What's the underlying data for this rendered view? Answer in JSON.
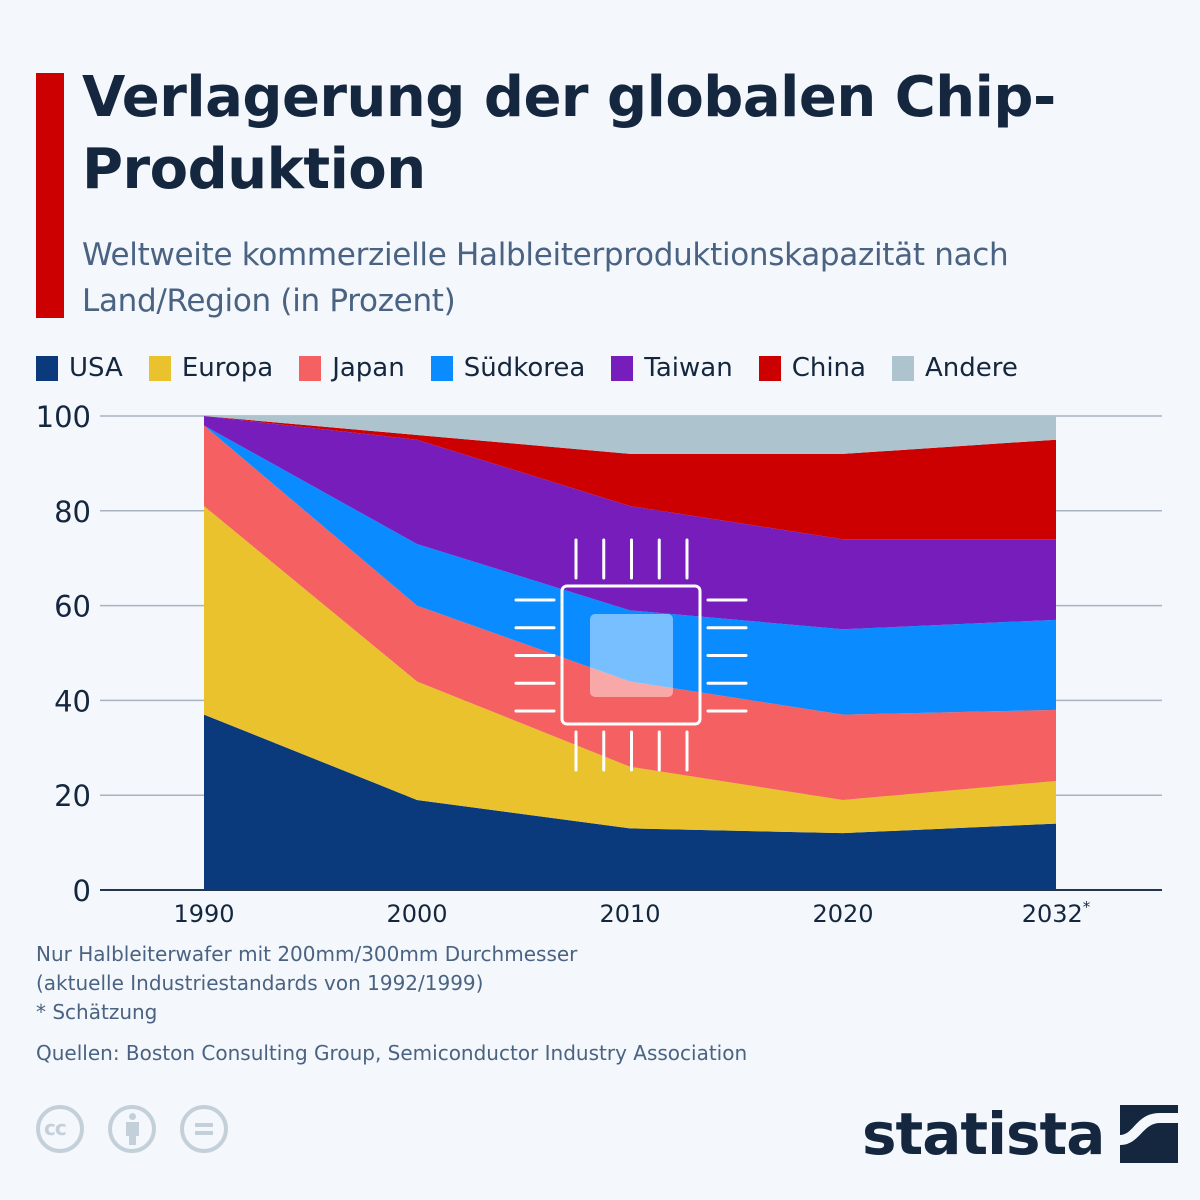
{
  "header": {
    "title": "Verlagerung der globalen Chip-Produktion",
    "subtitle": "Weltweite kommerzielle Halbleiterproduktionskapazität nach Land/Region (in Prozent)"
  },
  "colors": {
    "accent": "#cc0000",
    "USA": "#0b3a7c",
    "Europa": "#e9c22e",
    "Japan": "#f56162",
    "Südkorea": "#0a8bff",
    "Taiwan": "#771dbc",
    "China": "#cc0000",
    "Andere": "#adc3cd"
  },
  "legend": [
    {
      "label": "USA",
      "color": "#0b3a7c"
    },
    {
      "label": "Europa",
      "color": "#e9c22e"
    },
    {
      "label": "Japan",
      "color": "#f56162"
    },
    {
      "label": "Südkorea",
      "color": "#0a8bff"
    },
    {
      "label": "Taiwan",
      "color": "#771dbc"
    },
    {
      "label": "China",
      "color": "#cc0000"
    },
    {
      "label": "Andere",
      "color": "#adc3cd"
    }
  ],
  "chart_data": {
    "type": "area",
    "stacked": true,
    "title": "Verlagerung der globalen Chip-Produktion",
    "subtitle": "Weltweite kommerzielle Halbleiterproduktionskapazität nach Land/Region (in Prozent)",
    "xlabel": "",
    "ylabel": "",
    "categories": [
      "1990",
      "2000",
      "2010",
      "2020",
      "2032*"
    ],
    "x_tick_labels": [
      {
        "text": "1990",
        "sup": ""
      },
      {
        "text": "2000",
        "sup": ""
      },
      {
        "text": "2010",
        "sup": ""
      },
      {
        "text": "2020",
        "sup": ""
      },
      {
        "text": "2032",
        "sup": "*"
      }
    ],
    "ylim": [
      0,
      100
    ],
    "yticks": [
      0,
      20,
      40,
      60,
      80,
      100
    ],
    "grid": true,
    "legend_position": "top",
    "series": [
      {
        "name": "USA",
        "color": "#0b3a7c",
        "values": [
          37,
          19,
          13,
          12,
          14
        ]
      },
      {
        "name": "Europa",
        "color": "#e9c22e",
        "values": [
          44,
          25,
          13,
          7,
          9
        ]
      },
      {
        "name": "Japan",
        "color": "#f56162",
        "values": [
          17,
          16,
          18,
          18,
          15
        ]
      },
      {
        "name": "Südkorea",
        "color": "#0a8bff",
        "values": [
          0,
          13,
          15,
          18,
          19
        ]
      },
      {
        "name": "Taiwan",
        "color": "#771dbc",
        "values": [
          2,
          22,
          22,
          19,
          17
        ]
      },
      {
        "name": "China",
        "color": "#cc0000",
        "values": [
          0,
          1,
          11,
          18,
          21
        ]
      },
      {
        "name": "Andere",
        "color": "#adc3cd",
        "values": [
          0,
          4,
          8,
          8,
          5
        ]
      }
    ]
  },
  "footer": {
    "note_lines": [
      "Nur Halbleiterwafer mit 200mm/300mm Durchmesser",
      "(aktuelle Industriestandards von 1992/1999)",
      "* Schätzung"
    ],
    "source": "Quellen: Boston Consulting Group, Semiconductor Industry Association",
    "license_icons": [
      "cc-icon",
      "attribution-icon",
      "no-derivatives-icon"
    ],
    "logo_text": "statista"
  }
}
